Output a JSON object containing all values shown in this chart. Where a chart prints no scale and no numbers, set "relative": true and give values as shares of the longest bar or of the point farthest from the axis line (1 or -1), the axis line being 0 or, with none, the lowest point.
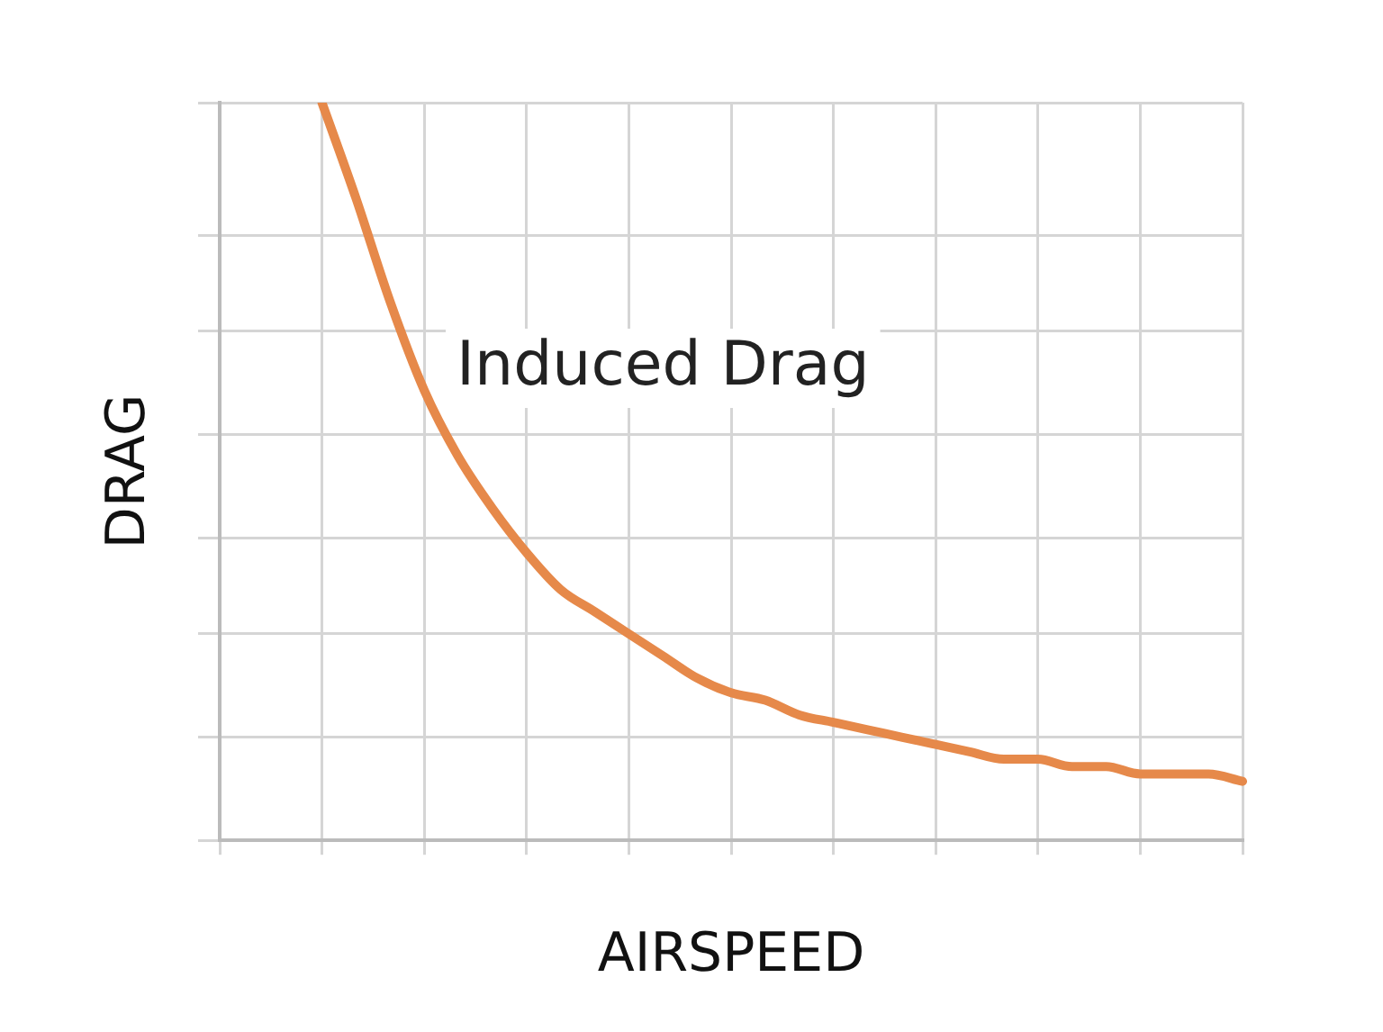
{
  "chart_data": {
    "type": "line",
    "xlabel": "AIRSPEED",
    "ylabel": "DRAG",
    "relative": true,
    "grid": true,
    "legend": false,
    "marker": "none",
    "line_style": "solid",
    "categories": [
      null,
      null,
      null,
      null,
      null,
      null,
      null,
      null,
      null,
      null,
      null,
      null,
      null,
      null,
      null,
      null,
      null,
      null,
      null,
      null,
      null,
      null,
      null,
      null,
      null,
      null,
      null,
      null,
      null,
      null,
      null
    ],
    "series": [
      {
        "name": "Induced Drag",
        "color": "#e6894a",
        "values": [
          null,
          null,
          null,
          1.0,
          0.87,
          0.73,
          0.61,
          0.52,
          0.45,
          0.39,
          0.34,
          0.31,
          0.28,
          0.25,
          0.22,
          0.2,
          0.19,
          0.17,
          0.16,
          0.15,
          0.14,
          0.13,
          0.12,
          0.11,
          0.11,
          0.1,
          0.1,
          0.09,
          0.09,
          0.09,
          0.08
        ]
      }
    ]
  }
}
